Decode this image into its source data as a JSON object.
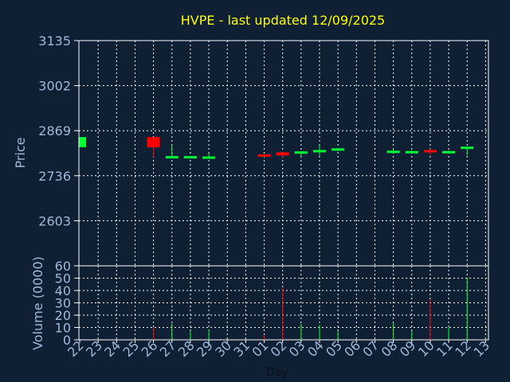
{
  "chart_data": [
    {
      "type": "candlestick",
      "title": "HVPE - last updated 12/09/2025",
      "ylabel": "Price",
      "xlabel": "",
      "ylim": [
        2470,
        3135
      ],
      "y_ticks": [
        "3135",
        "3002",
        "2869",
        "2736",
        "2603"
      ],
      "y_tick_values": [
        3135,
        3002,
        2869,
        2736,
        2603
      ],
      "grid": true,
      "colors": {
        "up": "#00ff33",
        "down": "#ff0000",
        "title": "#ffff00",
        "axis_text": "#a0b8d8",
        "grid": "#ffffff"
      },
      "candles": [
        {
          "day": "22",
          "open": 2820,
          "close": 2850,
          "high": 2850,
          "low": 2820
        },
        {
          "day": "26",
          "open": 2850,
          "close": 2820,
          "high": 2850,
          "low": 2791
        },
        {
          "day": "27",
          "open": 2792,
          "close": 2794,
          "high": 2826,
          "low": 2791
        },
        {
          "day": "28",
          "open": 2791,
          "close": 2794,
          "high": 2794,
          "low": 2791
        },
        {
          "day": "29",
          "open": 2790,
          "close": 2793,
          "high": 2803,
          "low": 2790
        },
        {
          "day": "01",
          "open": 2799,
          "close": 2796,
          "high": 2799,
          "low": 2795
        },
        {
          "day": "02",
          "open": 2805,
          "close": 2796,
          "high": 2805,
          "low": 2790
        },
        {
          "day": "03",
          "open": 2802,
          "close": 2808,
          "high": 2808,
          "low": 2793
        },
        {
          "day": "04",
          "open": 2810,
          "close": 2812,
          "high": 2826,
          "low": 2795
        },
        {
          "day": "05",
          "open": 2815,
          "close": 2817,
          "high": 2818,
          "low": 2808
        },
        {
          "day": "08",
          "open": 2808,
          "close": 2810,
          "high": 2816,
          "low": 2803
        },
        {
          "day": "09",
          "open": 2806,
          "close": 2809,
          "high": 2811,
          "low": 2803
        },
        {
          "day": "10",
          "open": 2812,
          "close": 2806,
          "high": 2815,
          "low": 2796
        },
        {
          "day": "11",
          "open": 2805,
          "close": 2809,
          "high": 2811,
          "low": 2803
        },
        {
          "day": "12",
          "open": 2816,
          "close": 2822,
          "high": 2822,
          "low": 2796
        }
      ]
    },
    {
      "type": "bar",
      "ylabel": "Volume (0000)",
      "xlabel": "Day",
      "ylim": [
        0,
        60
      ],
      "y_ticks": [
        "60",
        "50",
        "40",
        "30",
        "20",
        "10",
        "0"
      ],
      "y_tick_values": [
        60,
        50,
        40,
        30,
        20,
        10,
        0
      ],
      "grid": true,
      "categories": [
        "22",
        "23",
        "24",
        "25",
        "26",
        "27",
        "28",
        "29",
        "30",
        "31",
        "01",
        "02",
        "03",
        "04",
        "05",
        "06",
        "07",
        "08",
        "09",
        "10",
        "11",
        "12",
        "13"
      ],
      "volumes": [
        {
          "day": "26",
          "value": 10,
          "color": "#ff0000"
        },
        {
          "day": "27",
          "value": 13,
          "color": "#00ff33"
        },
        {
          "day": "28",
          "value": 7,
          "color": "#00ff33"
        },
        {
          "day": "29",
          "value": 8,
          "color": "#00ff33"
        },
        {
          "day": "01",
          "value": 4,
          "color": "#ff0000"
        },
        {
          "day": "02",
          "value": 42,
          "color": "#ff0000"
        },
        {
          "day": "03",
          "value": 13,
          "color": "#00ff33"
        },
        {
          "day": "04",
          "value": 12,
          "color": "#00ff33"
        },
        {
          "day": "05",
          "value": 7,
          "color": "#00ff33"
        },
        {
          "day": "08",
          "value": 14,
          "color": "#00ff33"
        },
        {
          "day": "09",
          "value": 7,
          "color": "#00ff33"
        },
        {
          "day": "10",
          "value": 33,
          "color": "#ff0000"
        },
        {
          "day": "11",
          "value": 10,
          "color": "#00ff33"
        },
        {
          "day": "12",
          "value": 50,
          "color": "#00ff33"
        }
      ]
    }
  ]
}
